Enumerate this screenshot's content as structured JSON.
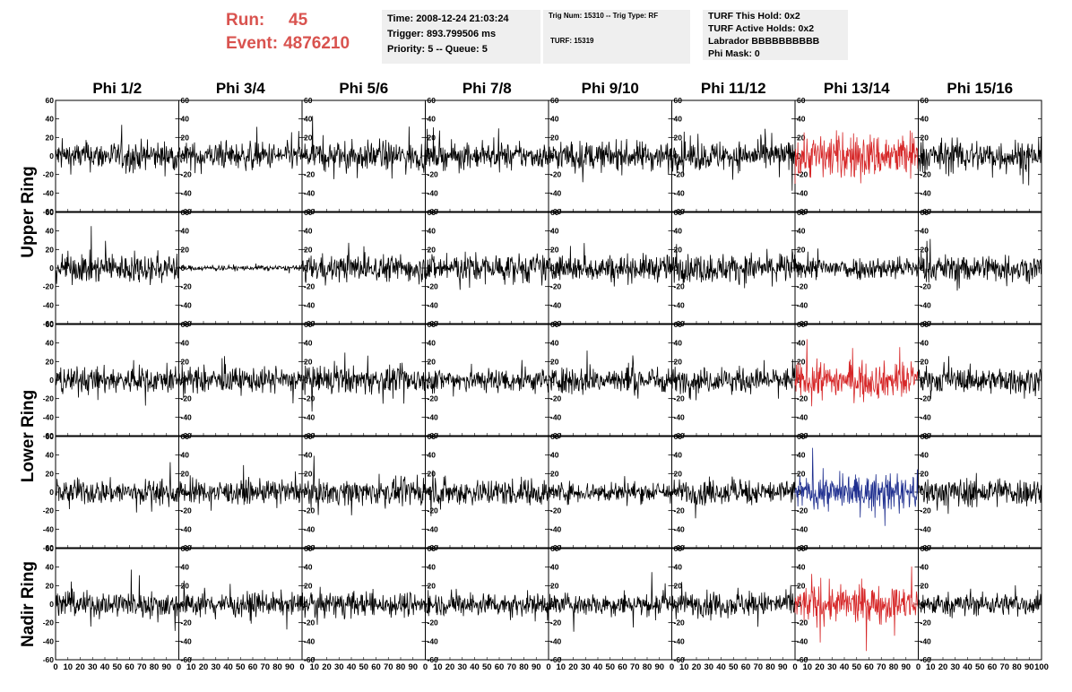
{
  "header": {
    "run_label": "Run:",
    "run_value": "45",
    "event_label": "Event:",
    "event_value": "4876210",
    "time_text": "Time: 2008-12-24 21:03:24",
    "trigger_text": "Trigger: 893.799506 ms",
    "priority_text": "Priority: 5 -- Queue: 5",
    "trig_num_text": "Trig Num: 15310 -- Trig Type: RF",
    "turf_text": "TURF: 15319",
    "turf_hold_text": "TURF This Hold: 0x2",
    "turf_active_text": "TURF Active Holds: 0x2",
    "labrador_text": "Labrador BBBBBBBBBB",
    "phi_mask_text": "Phi Mask: 0"
  },
  "chart_data": {
    "type": "line",
    "column_titles": [
      "Phi 1/2",
      "Phi 3/4",
      "Phi 5/6",
      "Phi 7/8",
      "Phi 9/10",
      "Phi 11/12",
      "Phi 13/14",
      "Phi 15/16"
    ],
    "ring_labels": [
      "Upper Ring",
      "Lower Ring",
      "Nadir Ring"
    ],
    "xlim": [
      0,
      100
    ],
    "ylim": [
      -60,
      60
    ],
    "x_ticks": [
      0,
      10,
      20,
      30,
      40,
      50,
      60,
      70,
      80,
      90,
      100
    ],
    "y_ticks": [
      -60,
      -40,
      -20,
      0,
      20,
      40,
      60
    ],
    "samples_per_trace": 260,
    "rows": [
      {
        "amplitudes": [
          14,
          13,
          14,
          12,
          14,
          14,
          22,
          16
        ],
        "colors": [
          "#000000",
          "#000000",
          "#000000",
          "#000000",
          "#000000",
          "#000000",
          "#d62728",
          "#000000"
        ]
      },
      {
        "amplitudes": [
          14,
          2.5,
          13,
          14,
          13,
          14,
          11,
          13
        ],
        "colors": [
          "#000000",
          "#000000",
          "#000000",
          "#000000",
          "#000000",
          "#000000",
          "#000000",
          "#000000"
        ]
      },
      {
        "amplitudes": [
          13,
          12,
          13,
          12,
          13,
          12,
          17,
          12
        ],
        "colors": [
          "#000000",
          "#000000",
          "#000000",
          "#000000",
          "#000000",
          "#000000",
          "#d62728",
          "#000000"
        ]
      },
      {
        "amplitudes": [
          12,
          11,
          12,
          13,
          10,
          12,
          16,
          14
        ],
        "colors": [
          "#000000",
          "#000000",
          "#000000",
          "#000000",
          "#000000",
          "#000000",
          "#1f2f8f",
          "#000000"
        ]
      },
      {
        "amplitudes": [
          13,
          11,
          12,
          11,
          11,
          12,
          18,
          11
        ],
        "colors": [
          "#000000",
          "#000000",
          "#000000",
          "#000000",
          "#000000",
          "#000000",
          "#d62728",
          "#000000"
        ]
      }
    ]
  }
}
